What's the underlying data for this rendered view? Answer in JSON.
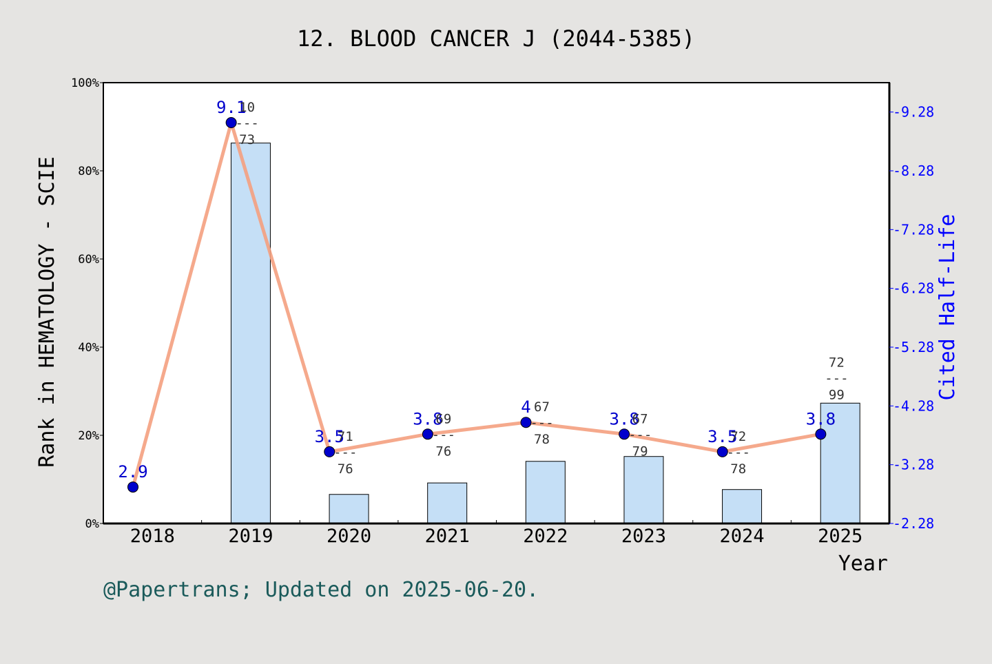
{
  "colors": {
    "background": "#e5e4e2",
    "plot_background": "#ffffff",
    "bar_fill": "#c5dff6",
    "line": "#f4a07f",
    "marker": "#0000cc",
    "right_axis": "#0000ff",
    "footer": "#1a5a5a",
    "rank_label": "#333333"
  },
  "footer": "@Papertrans; Updated on 2025-06-20.",
  "chart_data": {
    "type": "bar",
    "title": "12. BLOOD CANCER J (2044-5385)",
    "xlabel": "Year",
    "ylabel": "Rank in HEMATOLOGY - SCIE",
    "y2label": "Cited Half-Life",
    "categories": [
      "2018",
      "2019",
      "2020",
      "2021",
      "2022",
      "2023",
      "2024",
      "2025"
    ],
    "ylim": [
      0,
      100
    ],
    "yticks": [
      "0%",
      "20%",
      "40%",
      "60%",
      "80%",
      "100%"
    ],
    "y2lim": [
      2.28,
      9.78
    ],
    "y2ticks": [
      "2.28",
      "3.28",
      "4.28",
      "5.28",
      "6.28",
      "7.28",
      "8.28",
      "9.28"
    ],
    "grid": false,
    "series": [
      {
        "kind": "bar",
        "axis": "left",
        "values": [
          null,
          86.3,
          6.6,
          9.2,
          14.1,
          15.2,
          7.7,
          27.3
        ]
      },
      {
        "kind": "line",
        "axis": "right",
        "values": [
          2.9,
          9.1,
          3.5,
          3.8,
          4.0,
          3.8,
          3.5,
          3.8
        ],
        "labels": [
          "2.9",
          "9.1",
          "3.5",
          "3.8",
          "4",
          "3.8",
          "3.5",
          "3.8"
        ]
      }
    ],
    "rank_labels": [
      null,
      {
        "rank": "10",
        "sep": "---",
        "total": "73"
      },
      {
        "rank": "71",
        "sep": "---",
        "total": "76"
      },
      {
        "rank": "69",
        "sep": "---",
        "total": "76"
      },
      {
        "rank": "67",
        "sep": "---",
        "total": "78"
      },
      {
        "rank": "67",
        "sep": "---",
        "total": "79"
      },
      {
        "rank": "72",
        "sep": "---",
        "total": "78"
      },
      {
        "rank": "72",
        "sep": "---",
        "total": "99"
      }
    ]
  }
}
